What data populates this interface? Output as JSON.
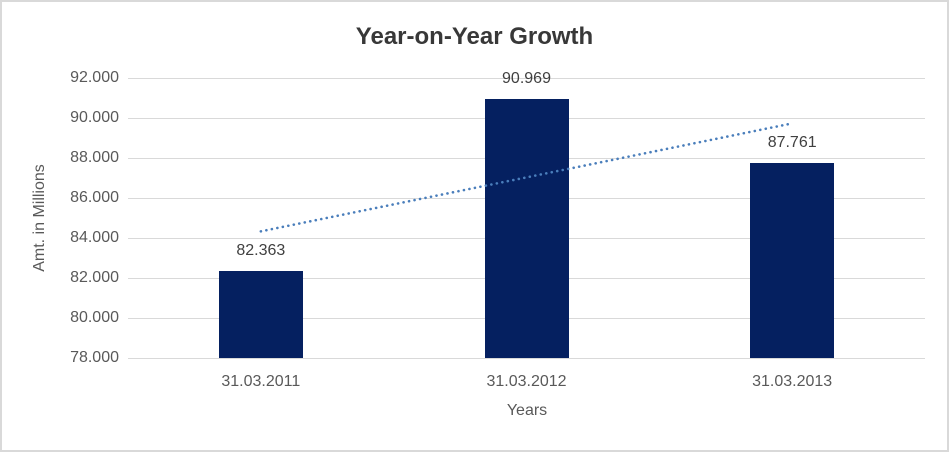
{
  "chart_data": {
    "type": "bar",
    "title": "Year-on-Year Growth",
    "categories": [
      "31.03.2011",
      "31.03.2012",
      "31.03.2013"
    ],
    "values": [
      82.363,
      90.969,
      87.761
    ],
    "value_labels": [
      "82.363",
      "90.969",
      "87.761"
    ],
    "xlabel": "Years",
    "ylabel": "Amt. in Millions",
    "ylim": [
      78,
      92
    ],
    "yticks": [
      78,
      80,
      82,
      84,
      86,
      88,
      90,
      92
    ],
    "ytick_labels": [
      "78.000",
      "80.000",
      "82.000",
      "84.000",
      "86.000",
      "88.000",
      "90.000",
      "92.000"
    ],
    "grid": true,
    "legend": false,
    "trendline": {
      "type": "linear",
      "style": "dotted"
    },
    "colors": {
      "bar": "#052060",
      "trendline": "#4a7ebb",
      "gridline": "#d9d9d9",
      "axis_text": "#595959",
      "value_label_text": "#404040",
      "title_text": "#383838",
      "canvas_border": "#d9d9d9",
      "background": "#ffffff"
    }
  }
}
